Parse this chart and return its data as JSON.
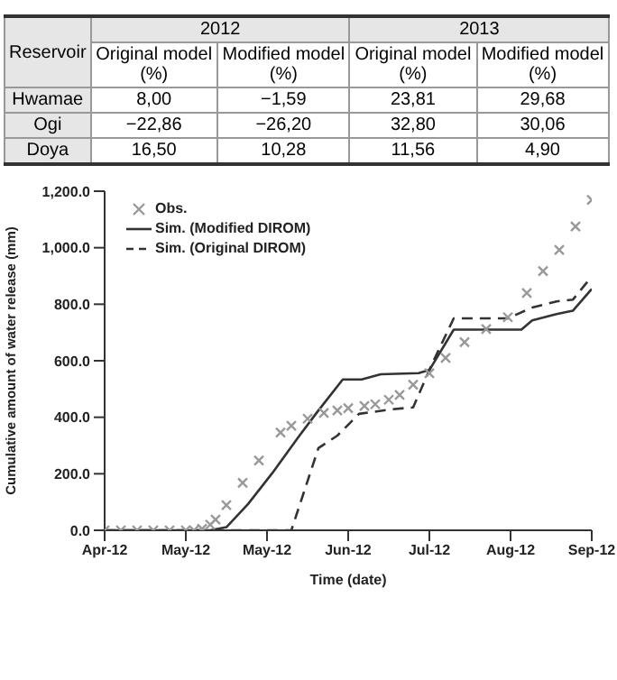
{
  "chart_data": [
    {
      "type": "other",
      "annotations": [
        "Reservoir",
        "2012",
        "2013",
        "Original model (%)",
        "Modified model (%)",
        "Original model (%)",
        "Modified model (%)",
        "Hwamae",
        "8,00",
        "−1,59",
        "23,81",
        "29,68",
        "Ogi",
        "−22,86",
        "−26,20",
        "32,80",
        "30,06",
        "Doya",
        "16,50",
        "10,28",
        "11,56",
        "4,90"
      ]
    },
    {
      "type": "line",
      "xlabel": "Time (date)",
      "ylabel": "Cumulative amount of  water release (mm)",
      "xlim": [
        "2012-04-01",
        "2012-09-28"
      ],
      "xticks": [
        {
          "value": "2012-04-01",
          "label": "Apr-12"
        },
        {
          "value": "2012-05-01",
          "label": "May-12"
        },
        {
          "value": "2012-05-31",
          "label": "May-12"
        },
        {
          "value": "2012-06-30",
          "label": "Jun-12"
        },
        {
          "value": "2012-07-30",
          "label": "Jul-12"
        },
        {
          "value": "2012-08-29",
          "label": "Aug-12"
        },
        {
          "value": "2012-09-28",
          "label": "Sep-12"
        }
      ],
      "ylim": [
        0,
        1200
      ],
      "yticks": [
        {
          "value": 0,
          "label": "0.0"
        },
        {
          "value": 200,
          "label": "200.0"
        },
        {
          "value": 400,
          "label": "400.0"
        },
        {
          "value": 600,
          "label": "600.0"
        },
        {
          "value": 800,
          "label": "800.0"
        },
        {
          "value": 1000,
          "label": "1,000.0"
        },
        {
          "value": 1200,
          "label": "1,200.0"
        }
      ],
      "legend": "top left",
      "series": [
        {
          "name": "Obs.",
          "type": "scatter",
          "marker": "cross",
          "color": "#999999",
          "x": [
            "2012-04-01",
            "2012-04-07",
            "2012-04-13",
            "2012-04-19",
            "2012-04-25",
            "2012-05-01",
            "2012-05-04",
            "2012-05-07",
            "2012-05-10",
            "2012-05-12",
            "2012-05-16",
            "2012-05-22",
            "2012-05-28",
            "2012-06-05",
            "2012-06-09",
            "2012-06-15",
            "2012-06-21",
            "2012-06-26",
            "2012-06-30",
            "2012-07-06",
            "2012-07-10",
            "2012-07-15",
            "2012-07-19",
            "2012-07-24",
            "2012-07-30",
            "2012-08-05",
            "2012-08-12",
            "2012-08-20",
            "2012-08-28",
            "2012-09-04",
            "2012-09-10",
            "2012-09-16",
            "2012-09-22",
            "2012-09-28"
          ],
          "values": [
            0,
            0,
            0,
            0,
            0,
            0,
            0,
            5,
            20,
            38,
            89,
            168,
            247,
            346,
            370,
            395,
            415,
            424,
            432,
            440,
            446,
            462,
            479,
            515,
            556,
            610,
            666,
            712,
            754,
            840,
            917,
            992,
            1075,
            1169
          ]
        },
        {
          "name": "Sim. (Modified DIROM)",
          "type": "line",
          "line_style": "solid",
          "color": "#333333",
          "x": [
            "2012-04-01",
            "2012-05-10",
            "2012-05-16",
            "2012-05-24",
            "2012-06-02",
            "2012-06-12",
            "2012-06-19",
            "2012-06-28",
            "2012-07-05",
            "2012-07-12",
            "2012-07-26",
            "2012-07-30",
            "2012-08-08",
            "2012-08-19",
            "2012-09-02",
            "2012-09-06",
            "2012-09-15",
            "2012-09-21",
            "2012-09-28"
          ],
          "values": [
            0,
            0,
            11,
            93,
            203,
            335,
            424,
            534,
            534,
            552,
            556,
            567,
            710,
            710,
            710,
            743,
            765,
            777,
            854
          ]
        },
        {
          "name": "Sim. (Original DIROM)",
          "type": "line",
          "line_style": "dashed",
          "color": "#333333",
          "x": [
            "2012-04-01",
            "2012-06-09",
            "2012-06-19",
            "2012-06-26",
            "2012-07-04",
            "2012-07-16",
            "2012-07-24",
            "2012-07-31",
            "2012-08-08",
            "2012-08-28",
            "2012-09-06",
            "2012-09-15",
            "2012-09-21",
            "2012-09-28"
          ],
          "values": [
            0,
            0,
            291,
            335,
            412,
            428,
            435,
            589,
            750,
            750,
            788,
            810,
            816,
            898
          ]
        }
      ]
    }
  ]
}
